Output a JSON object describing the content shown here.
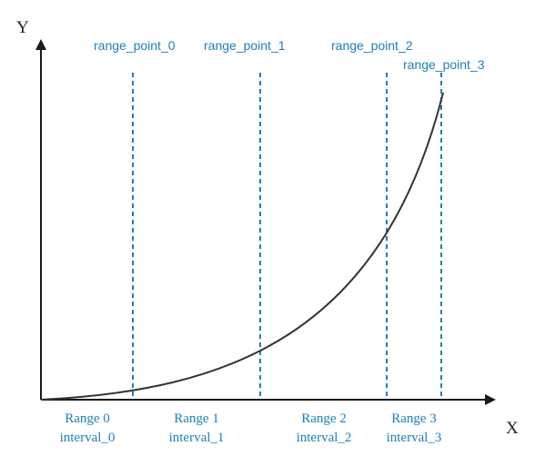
{
  "axes": {
    "y_label": "Y",
    "x_label": "X"
  },
  "range_points": [
    "range_point_0",
    "range_point_1",
    "range_point_2",
    "range_point_3"
  ],
  "ranges": [
    {
      "name": "Range 0",
      "interval": "interval_0"
    },
    {
      "name": "Range 1",
      "interval": "interval_1"
    },
    {
      "name": "Range 2",
      "interval": "interval_2"
    },
    {
      "name": "Range 3",
      "interval": "interval_3"
    }
  ],
  "colors": {
    "axis": "#1a1a1a",
    "curve": "#333333",
    "accent": "#1e7fb8"
  }
}
